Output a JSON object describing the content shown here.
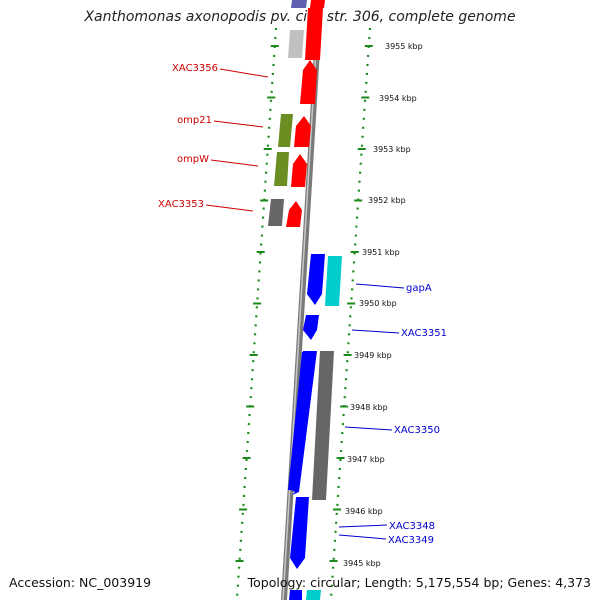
{
  "title": "Xanthomonas axonopodis pv. citri str. 306, complete genome",
  "footer": {
    "accession": "Accession: NC_003919",
    "topology": "Topology: circular; Length: 5,175,554 bp; Genes: 4,373"
  },
  "colors": {
    "backbone": "#808080",
    "forward_gene": "#ff0000",
    "reverse_gene": "#0000ff",
    "rna_gene": "#6b8e23",
    "pseudo_gene": "#666666",
    "light_gene": "#c8c8c8",
    "cyan_gene": "#00cccc",
    "ticks": "#1a8a1a",
    "left_label": "#cc0000",
    "right_label": "#0000cc"
  },
  "scale": {
    "kbp_labels": [
      "3955 kbp",
      "3954 kbp",
      "3953 kbp",
      "3952 kbp",
      "3951 kbp",
      "3950 kbp",
      "3949 kbp",
      "3948 kbp",
      "3947 kbp",
      "3946 kbp",
      "3945 kbp"
    ]
  },
  "left_labels": [
    "XAC3356",
    "omp21",
    "ompW",
    "XAC3353"
  ],
  "right_labels": [
    "gapA",
    "XAC3351",
    "XAC3350",
    "XAC3348",
    "XAC3349"
  ]
}
